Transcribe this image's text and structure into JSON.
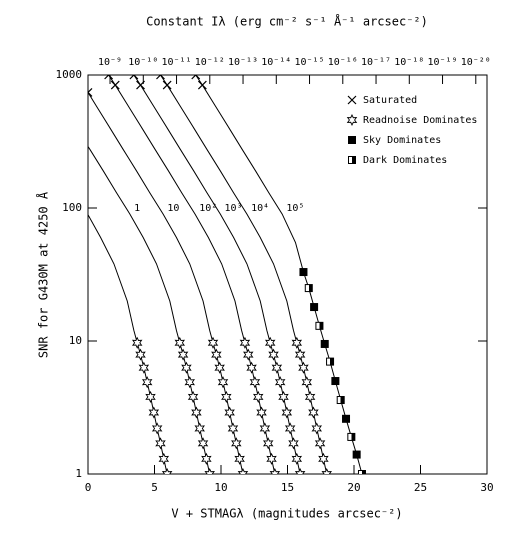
{
  "chart_data": {
    "type": "line",
    "title": "Constant Iλ (erg cm⁻² s⁻¹ Å⁻¹ arcsec⁻²)",
    "x_label": "V + STMAGλ (magnitudes arcsec⁻²)",
    "y_label": "SNR for G430M at 4250 Å",
    "xlim": [
      0,
      30
    ],
    "xticks": [
      0,
      5,
      10,
      15,
      20,
      25,
      30
    ],
    "ylim": [
      1,
      1000
    ],
    "yscale": "log",
    "yticks": [
      1,
      10,
      100,
      1000
    ],
    "x2lim": [
      4.6e-09,
      4.6e-21
    ],
    "x2scale": "log",
    "x2ticks": [
      {
        "value": 1e-09,
        "label": "10⁻⁹"
      },
      {
        "value": 1e-10,
        "label": "10⁻¹⁰"
      },
      {
        "value": 1e-11,
        "label": "10⁻¹¹"
      },
      {
        "value": 1e-12,
        "label": "10⁻¹²"
      },
      {
        "value": 1e-13,
        "label": "10⁻¹³"
      },
      {
        "value": 1e-14,
        "label": "10⁻¹⁴"
      },
      {
        "value": 1e-15,
        "label": "10⁻¹⁵"
      },
      {
        "value": 1e-16,
        "label": "10⁻¹⁶"
      },
      {
        "value": 1e-17,
        "label": "10⁻¹⁷"
      },
      {
        "value": 1e-18,
        "label": "10⁻¹⁸"
      },
      {
        "value": 1e-19,
        "label": "10⁻¹⁹"
      },
      {
        "value": 1e-20,
        "label": "10⁻²⁰"
      }
    ],
    "legend": {
      "position": "upper right",
      "entries": [
        "Saturated",
        "Readnoise Dominates",
        "Sky Dominates",
        "Dark Dominates"
      ]
    },
    "series": [
      {
        "color": "#000000",
        "x": [
          0,
          0.95,
          1.95,
          2.95,
          3.45,
          3.7,
          3.95,
          4.2,
          4.45,
          4.7,
          4.95,
          5.2,
          5.45,
          5.7,
          5.95
        ],
        "values": [
          89,
          60,
          38,
          20,
          12,
          9.7,
          7.9,
          6.3,
          4.9,
          3.8,
          2.9,
          2.2,
          1.7,
          1.3,
          1.0
        ],
        "markers": [
          null,
          null,
          null,
          null,
          null,
          1,
          1,
          1,
          1,
          1,
          1,
          1,
          1,
          1,
          1
        ]
      },
      {
        "name": "1",
        "color": "#000000",
        "x": [
          0,
          0.15,
          1.15,
          2.15,
          3.15,
          4.15,
          5.15,
          6.15,
          6.65,
          6.9,
          7.15,
          7.4,
          7.65,
          7.9,
          8.15,
          8.4,
          8.65,
          8.9,
          9.15
        ],
        "values": [
          290,
          275,
          190,
          130,
          90,
          60,
          38,
          20,
          12,
          9.7,
          7.9,
          6.3,
          4.9,
          3.8,
          2.9,
          2.2,
          1.7,
          1.3,
          1.0
        ],
        "markers": [
          null,
          null,
          null,
          null,
          null,
          null,
          null,
          null,
          null,
          1,
          1,
          1,
          1,
          1,
          1,
          1,
          1,
          1,
          1
        ]
      },
      {
        "name": "10",
        "color": "#000000",
        "x": [
          0,
          0.65,
          1.65,
          2.65,
          3.65,
          4.65,
          5.65,
          6.65,
          7.65,
          8.65,
          9.15,
          9.4,
          9.65,
          9.9,
          10.15,
          10.4,
          10.65,
          10.9,
          11.15,
          11.4,
          11.65
        ],
        "values": [
          740,
          580,
          400,
          275,
          190,
          130,
          90,
          60,
          38,
          20,
          12,
          9.7,
          7.9,
          6.3,
          4.9,
          3.8,
          2.9,
          2.2,
          1.7,
          1.3,
          1.0
        ],
        "markers": [
          0,
          null,
          null,
          null,
          null,
          null,
          null,
          null,
          null,
          null,
          null,
          1,
          1,
          1,
          1,
          1,
          1,
          1,
          1,
          1,
          1
        ]
      },
      {
        "name": "10²",
        "color": "#000000",
        "x": [
          1.55,
          2.05,
          3.05,
          4.05,
          5.05,
          6.05,
          7.05,
          8.05,
          9.05,
          10.05,
          11.05,
          11.55,
          11.8,
          12.05,
          12.3,
          12.55,
          12.8,
          13.05,
          13.3,
          13.55,
          13.8,
          14.05
        ],
        "values": [
          1000,
          840,
          580,
          400,
          275,
          190,
          130,
          90,
          60,
          38,
          20,
          12,
          9.7,
          7.9,
          6.3,
          4.9,
          3.8,
          2.9,
          2.2,
          1.7,
          1.3,
          1.0
        ],
        "markers": [
          0,
          0,
          null,
          null,
          null,
          null,
          null,
          null,
          null,
          null,
          null,
          null,
          1,
          1,
          1,
          1,
          1,
          1,
          1,
          1,
          1,
          1
        ]
      },
      {
        "name": "10³",
        "color": "#000000",
        "x": [
          3.45,
          3.95,
          4.95,
          5.95,
          6.95,
          7.95,
          8.95,
          9.95,
          10.95,
          11.95,
          12.95,
          13.45,
          13.7,
          13.95,
          14.2,
          14.45,
          14.7,
          14.95,
          15.2,
          15.45,
          15.7,
          15.95
        ],
        "values": [
          1000,
          840,
          580,
          400,
          275,
          190,
          130,
          90,
          60,
          38,
          20,
          12,
          9.7,
          7.9,
          6.3,
          4.9,
          3.8,
          2.9,
          2.2,
          1.7,
          1.3,
          1.0
        ],
        "markers": [
          0,
          0,
          null,
          null,
          null,
          null,
          null,
          null,
          null,
          null,
          null,
          null,
          1,
          1,
          1,
          1,
          1,
          1,
          1,
          1,
          1,
          1
        ]
      },
      {
        "name": "10⁴",
        "color": "#000000",
        "x": [
          5.45,
          5.95,
          6.95,
          7.95,
          8.95,
          9.95,
          10.95,
          11.95,
          12.95,
          13.95,
          14.95,
          15.45,
          15.7,
          15.95,
          16.2,
          16.45,
          16.7,
          16.95,
          17.2,
          17.45,
          17.7,
          17.95
        ],
        "values": [
          1000,
          840,
          580,
          400,
          275,
          190,
          130,
          90,
          60,
          38,
          20,
          12,
          9.7,
          7.9,
          6.3,
          4.9,
          3.8,
          2.9,
          2.2,
          1.7,
          1.3,
          1.0
        ],
        "markers": [
          0,
          0,
          null,
          null,
          null,
          null,
          null,
          null,
          null,
          null,
          null,
          null,
          1,
          1,
          1,
          1,
          1,
          1,
          1,
          1,
          1,
          1
        ]
      },
      {
        "name": "10⁵",
        "color": "#000000",
        "x": [
          8.1,
          8.6,
          9.6,
          10.6,
          11.6,
          12.6,
          13.6,
          14.6,
          15.6,
          16.2,
          16.6,
          17.0,
          17.4,
          17.8,
          18.2,
          18.6,
          19.0,
          19.4,
          19.8,
          20.2,
          20.6
        ],
        "values": [
          1000,
          840,
          580,
          400,
          275,
          190,
          130,
          90,
          55,
          33,
          25,
          18,
          13,
          9.5,
          7,
          5,
          3.6,
          2.6,
          1.9,
          1.4,
          1.0
        ],
        "markers": [
          0,
          0,
          null,
          null,
          null,
          null,
          null,
          null,
          null,
          2,
          3,
          2,
          3,
          2,
          3,
          2,
          3,
          2,
          3,
          2,
          3
        ]
      }
    ]
  }
}
